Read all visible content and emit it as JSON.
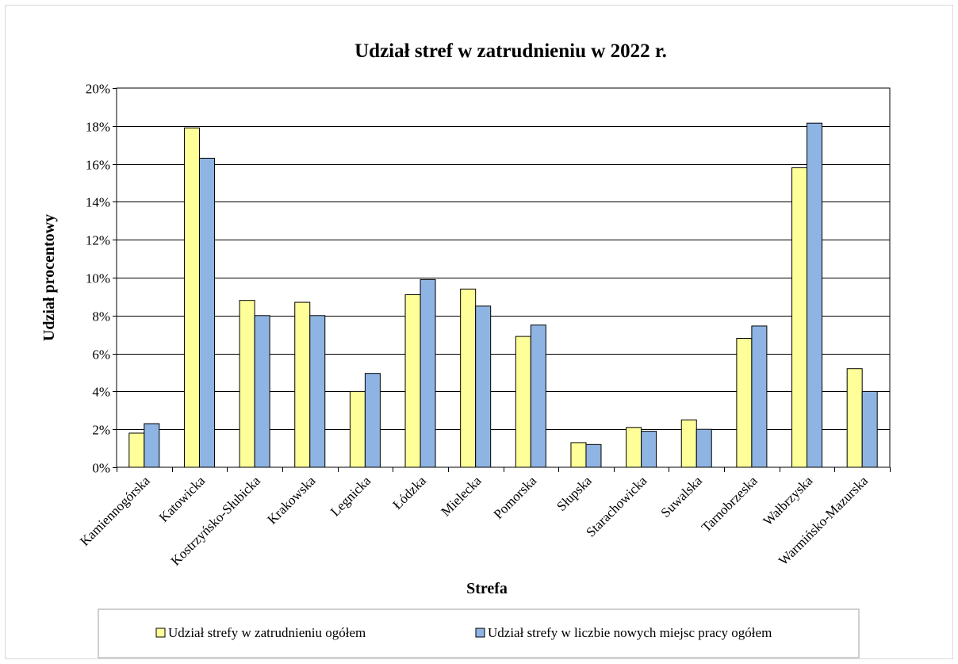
{
  "chart_data": {
    "type": "bar",
    "title": "Udział stref  w zatrudnieniu w 2022 r.",
    "xlabel": "Strefa",
    "ylabel": "Udział  procentowy",
    "ylim": [
      0,
      20
    ],
    "yticks": [
      "0%",
      "2%",
      "4%",
      "6%",
      "8%",
      "10%",
      "12%",
      "14%",
      "16%",
      "18%",
      "20%"
    ],
    "grid": true,
    "legend_position": "bottom",
    "categories": [
      "Kamiennogórska",
      "Katowicka",
      "Kostrzyńsko-Słubicka",
      "Krakowska",
      "Legnicka",
      "Łódzka",
      "Mielecka",
      "Pomorska",
      "Słupska",
      "Starachowicka",
      "Suwalska",
      "Tarnobrzeska",
      "Wałbrzyska",
      "Warmińsko-Mazurska"
    ],
    "series": [
      {
        "name": "Udział strefy w zatrudnieniu ogółem",
        "color": "#ffff99",
        "values": [
          1.8,
          17.9,
          8.8,
          8.7,
          4.0,
          9.1,
          9.4,
          6.9,
          1.3,
          2.1,
          2.5,
          6.8,
          15.8,
          5.2
        ]
      },
      {
        "name": "Udział strefy w liczbie nowych miejsc pracy ogółem",
        "color": "#8eb4e3",
        "values": [
          2.3,
          16.3,
          8.0,
          8.0,
          4.95,
          9.9,
          8.5,
          7.5,
          1.2,
          1.9,
          2.0,
          7.45,
          18.15,
          4.0
        ]
      }
    ]
  }
}
